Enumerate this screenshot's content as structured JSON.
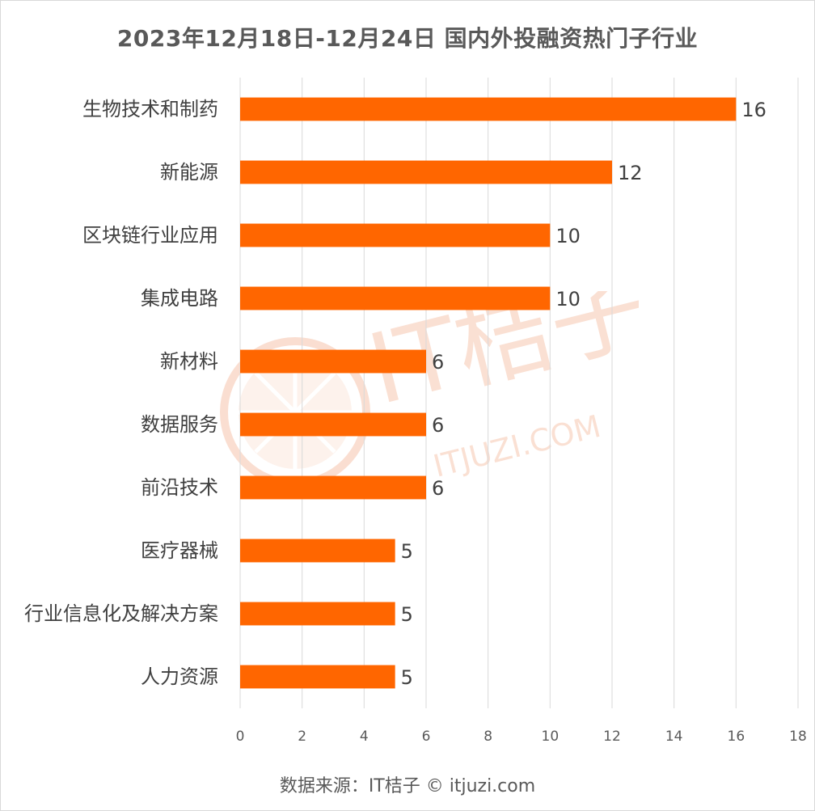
{
  "chart_data": {
    "type": "bar",
    "orientation": "horizontal",
    "title": "2023年12月18日-12月24日 国内外投融资热门子行业",
    "categories": [
      "生物技术和制药",
      "新能源",
      "区块链行业应用",
      "集成电路",
      "新材料",
      "数据服务",
      "前沿技术",
      "医疗器械",
      "行业信息化及解决方案",
      "人力资源"
    ],
    "values": [
      16,
      12,
      10,
      10,
      6,
      6,
      6,
      5,
      5,
      5
    ],
    "xlim": [
      0,
      18
    ],
    "xticks": [
      0,
      2,
      4,
      6,
      8,
      10,
      12,
      14,
      16,
      18
    ],
    "grid": true,
    "bar_color": "#ff6600",
    "data_labels": true
  },
  "source": "数据来源：IT桔子 © itjuzi.com",
  "watermark": {
    "brand": "IT桔子",
    "domain": "ITJUZI.COM",
    "color": "#f8d5c4"
  }
}
